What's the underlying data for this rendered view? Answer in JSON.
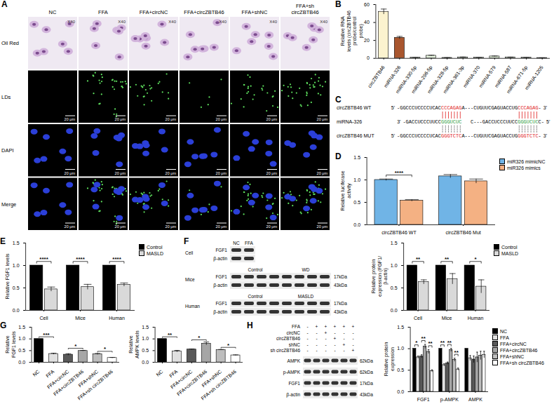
{
  "image_panel": {
    "panel": "A",
    "columns": [
      "NC",
      "FFA",
      "FFA+circNC",
      "FFA+circZBTB46",
      "FFA+shNC",
      "FFA+sh circZBTB46"
    ],
    "rows": [
      "Oil Red",
      "LDs",
      "DAPI",
      "Merge"
    ],
    "magnification": "X40",
    "scale_bar": "20 μm"
  },
  "sequence_panel": {
    "panel": "C",
    "lines": [
      {
        "label": "circZBTB46 WT",
        "ends": [
          "5'",
          "3'"
        ],
        "segments": [
          {
            "text": "-GGCCCUCCCCUCAC"
          },
          {
            "text": "CCCAGAG",
            "color": "#e02020"
          },
          {
            "text": "A---CUGUUCGAGUACCUG"
          },
          {
            "text": "CCCAGAG",
            "color": "#e02020"
          },
          {
            "text": "-"
          }
        ]
      },
      {
        "label": "miRNA-326",
        "ends": [
          "3'",
          "5'"
        ],
        "segments": [
          {
            "text": "-GACCUCCCUUCC"
          },
          {
            "text": "GGGUCUC",
            "color": "#2e9e3e"
          },
          {
            "text": "C---GACCUCCCUUCC"
          },
          {
            "text": "GGGUCUC",
            "color": "#2e9e3e"
          },
          {
            "text": "C-"
          }
        ]
      },
      {
        "label": "circZBTB46 MUT",
        "ends": [
          "5'",
          "3'"
        ],
        "segments": [
          {
            "text": "-GGCCCUCCCCUCAC"
          },
          {
            "text": "GGGTCTC",
            "color": "#e02020"
          },
          {
            "text": "A---CUGUUCGAGUACCUG"
          },
          {
            "text": "GGGTCTC",
            "color": "#e02020"
          },
          {
            "text": "-"
          }
        ]
      }
    ]
  },
  "blot_panels": [
    {
      "panel": "F",
      "groups": [
        {
          "name": "Cell",
          "headers": [
            "NC",
            "FFA"
          ],
          "lanes": [
            1,
            1
          ],
          "proteins": [
            "FGF1",
            "β-actin"
          ],
          "kda": []
        },
        {
          "name": "Mice",
          "headers": [
            "Control",
            "WD"
          ],
          "lanes": [
            4,
            4
          ],
          "proteins": [
            "FGF1",
            "β-actin"
          ],
          "kda": [
            "17kDa",
            "43kDa"
          ]
        },
        {
          "name": "Human",
          "headers": [
            "Control",
            "MASLD"
          ],
          "lanes": [
            4,
            4
          ],
          "proteins": [
            "FGF1",
            "β-actin"
          ],
          "kda": [
            "17kDa",
            "43kDa"
          ]
        }
      ]
    },
    {
      "panel": "H",
      "conditions": [
        "FFA",
        "circNC",
        "circZBTB46",
        "shNC",
        "sh circZBTB46"
      ],
      "signs": [
        [
          "-",
          "+",
          "+",
          "+",
          "+",
          "+"
        ],
        [
          "-",
          "-",
          "+",
          "-",
          "-",
          "-"
        ],
        [
          "-",
          "-",
          "-",
          "+",
          "-",
          "-"
        ],
        [
          "-",
          "-",
          "-",
          "-",
          "+",
          "-"
        ],
        [
          "-",
          "-",
          "-",
          "-",
          "-",
          "+"
        ]
      ],
      "proteins": [
        "AMPK",
        "p-AMPK",
        "FGF1",
        "β-actin"
      ],
      "kda": [
        "62kDa",
        "62kDa",
        "17kDa",
        "43kDa"
      ]
    }
  ],
  "chart_data": [
    {
      "panel": "B",
      "type": "bar",
      "y_label": "Relative RNA levels (circZBTB46 probe/control probe)",
      "categories": [
        "circZBTB46",
        "miRNA-326",
        "miRNA-330-5p",
        "miRNA-296-5p",
        "miRNA-328-5p",
        "miRNA-361-3p",
        "miRNA-370",
        "miRNA-579",
        "miRNA-587",
        "miRNA-671-5p",
        "miRNA-1205"
      ],
      "values": [
        52,
        23,
        0.8,
        3,
        0.6,
        1.2,
        0.8,
        2.2,
        1.2,
        0.8,
        0.5
      ],
      "errors": [
        3,
        1.5,
        0.2,
        0.5,
        0.2,
        0.3,
        0.2,
        0.4,
        0.2,
        0.2,
        0.1
      ],
      "colors": [
        "#fcf3cf",
        "#a9562e",
        "#e2efda",
        "#e2efda",
        "#e2efda",
        "#e2efda",
        "#e2efda",
        "#e2efda",
        "#e2efda",
        "#e2efda",
        "#e2efda"
      ],
      "ylim": [
        0,
        60
      ],
      "yticks": [
        0,
        20,
        40,
        60
      ]
    },
    {
      "panel": "D",
      "type": "bar",
      "y_label": "Relative luciferase activity",
      "categories": [
        "circZBTB46 WT",
        "circZBTB46 Mut"
      ],
      "series": [
        {
          "name": "miR326 mimicNC",
          "color": "#70b4e6",
          "values": [
            1,
            1.08
          ],
          "errors": [
            0.02,
            0.04
          ]
        },
        {
          "name": "miR326 mimics",
          "color": "#f4b183",
          "values": [
            0.54,
            0.97
          ],
          "errors": [
            0.02,
            0.05
          ]
        }
      ],
      "ylim": [
        0,
        1.5
      ],
      "yticks": [
        {
          "value": 0,
          "label": "0.0"
        },
        {
          "value": 0.5,
          "label": "0.5"
        },
        {
          "value": 1,
          "label": "1.0"
        },
        {
          "value": 1.5,
          "label": "1.5"
        }
      ],
      "legend": "right",
      "annotations": [
        {
          "text": "****",
          "category": "circZBTB46 WT",
          "from": "miR326 mimicNC",
          "to": "miR326 mimics"
        }
      ]
    },
    {
      "panel": "E",
      "type": "bar",
      "y_label": "Relative FGF1 levels",
      "categories": [
        "Cell",
        "Mice",
        "Human"
      ],
      "series": [
        {
          "name": "Control",
          "color": "#000000",
          "values": [
            1,
            1,
            1
          ],
          "errors": [
            0,
            0,
            0
          ]
        },
        {
          "name": "MASLD",
          "color": "#d9d9d9",
          "values": [
            0.47,
            0.52,
            0.57
          ],
          "errors": [
            0.05,
            0.06,
            0.04
          ]
        }
      ],
      "ylim": [
        0,
        1.5
      ],
      "yticks": [
        {
          "value": 0,
          "label": "0.0"
        },
        {
          "value": 0.5,
          "label": "0.5"
        },
        {
          "value": 1,
          "label": "1.0"
        },
        {
          "value": 1.5,
          "label": "1.5"
        }
      ],
      "legend": "right",
      "annotations": [
        {
          "text": "****",
          "category": "Cell",
          "from": "Control",
          "to": "MASLD"
        },
        {
          "text": "****",
          "category": "Mice",
          "from": "Control",
          "to": "MASLD"
        },
        {
          "text": "****",
          "category": "Human",
          "from": "Control",
          "to": "MASLD"
        }
      ]
    },
    {
      "type": "bar",
      "y_label": "Relative protein expression (FGF1/ β-actin)",
      "categories": [
        "Cell",
        "Mice",
        "Human"
      ],
      "series": [
        {
          "name": "Control",
          "color": "#000000",
          "values": [
            1,
            1,
            1
          ],
          "errors": [
            0,
            0,
            0
          ]
        },
        {
          "name": "MASLD",
          "color": "#d9d9d9",
          "values": [
            0.63,
            0.7,
            0.53
          ],
          "errors": [
            0.05,
            0.12,
            0.15
          ]
        }
      ],
      "ylim": [
        0,
        1.5
      ],
      "yticks": [
        {
          "value": 0,
          "label": "0.0"
        },
        {
          "value": 0.5,
          "label": "0.5"
        },
        {
          "value": 1,
          "label": "1.0"
        },
        {
          "value": 1.5,
          "label": "1.5"
        }
      ],
      "legend": "right",
      "annotations": [
        {
          "text": "**",
          "category": "Cell",
          "from": "Control",
          "to": "MASLD"
        },
        {
          "text": "**",
          "category": "Mice",
          "from": "Control",
          "to": "MASLD"
        },
        {
          "text": "*",
          "category": "Human",
          "from": "Control",
          "to": "MASLD"
        }
      ]
    },
    {
      "panel": "G",
      "type": "bar",
      "y_label": "Relative FGF1 levels",
      "categories": [
        "NC",
        "FFA",
        "FFA+circNC",
        "FFA+circZBTB46",
        "FFA+shNC",
        "FFA+sh circZBTB46"
      ],
      "values": [
        1,
        0.36,
        0.33,
        0.49,
        0.35,
        0.19
      ],
      "errors": [
        0,
        0.03,
        0.04,
        0.02,
        0.03,
        0.02
      ],
      "colors": [
        "#000000",
        "#e0e0e0",
        "#595959",
        "#a6a6a6",
        "#bdbdbd",
        "#ffffff"
      ],
      "ylim": [
        0,
        1.5
      ],
      "yticks": [
        {
          "value": 0,
          "label": "0.0"
        },
        {
          "value": 0.5,
          "label": "0.5"
        },
        {
          "value": 1,
          "label": "1.0"
        },
        {
          "value": 1.5,
          "label": "1.5"
        }
      ],
      "annotations": [
        {
          "text": "***",
          "from": "NC",
          "to": "FFA"
        },
        {
          "text": "*",
          "from": "FFA+circNC",
          "to": "FFA+circZBTB46"
        },
        {
          "text": "*",
          "from": "FFA+shNC",
          "to": "FFA+sh circZBTB46"
        }
      ]
    },
    {
      "type": "bar",
      "y_label": "Relative AMPK levels",
      "categories": [
        "NC",
        "FFA",
        "FFA+circNC",
        "FFA+circZBTB46",
        "FFA+shNC",
        "FFA+sh circZBTB46"
      ],
      "values": [
        1,
        0.47,
        0.55,
        0.8,
        0.53,
        0.3
      ],
      "errors": [
        0,
        0.04,
        0.02,
        0.07,
        0.02,
        0.02
      ],
      "colors": [
        "#000000",
        "#e0e0e0",
        "#595959",
        "#a6a6a6",
        "#bdbdbd",
        "#ffffff"
      ],
      "ylim": [
        0,
        1.5
      ],
      "yticks": [
        {
          "value": 0,
          "label": "0.0"
        },
        {
          "value": 0.5,
          "label": "0.5"
        },
        {
          "value": 1,
          "label": "1.0"
        },
        {
          "value": 1.5,
          "label": "1.5"
        }
      ],
      "annotations": [
        {
          "text": "**",
          "from": "NC",
          "to": "FFA"
        },
        {
          "text": "*",
          "from": "FFA+circNC",
          "to": "FFA+circZBTB46"
        },
        {
          "text": "*",
          "from": "FFA+shNC",
          "to": "FFA+sh circZBTB46"
        }
      ]
    },
    {
      "type": "bar",
      "y_label": "Relative protein expression",
      "categories": [
        "FGF1",
        "p-AMPK",
        "AMPK"
      ],
      "series": [
        {
          "name": "NC",
          "color": "#000000",
          "values": [
            1,
            1,
            1
          ],
          "errors": [
            0,
            0,
            0
          ]
        },
        {
          "name": "FFA",
          "color": "#e0e0e0",
          "values": [
            0.8,
            0.62,
            0.78
          ],
          "errors": [
            0.03,
            0.03,
            0.06
          ]
        },
        {
          "name": "FFA+circNC",
          "color": "#595959",
          "values": [
            0.82,
            0.66,
            0.75
          ],
          "errors": [
            0.04,
            0.03,
            0.08
          ]
        },
        {
          "name": "FFA+circZBTB46",
          "color": "#a6a6a6",
          "values": [
            1.05,
            0.97,
            0.8
          ],
          "errors": [
            0.05,
            0.04,
            0.12
          ]
        },
        {
          "name": "FFA+shNC",
          "color": "#bdbdbd",
          "values": [
            0.93,
            0.74,
            0.84
          ],
          "errors": [
            0.05,
            0.04,
            0.1
          ]
        },
        {
          "name": "FFA+sh circZBTB46",
          "color": "#ffffff",
          "values": [
            0.48,
            0.52,
            0.86
          ],
          "errors": [
            0.03,
            0.03,
            0.08
          ]
        }
      ],
      "ylim": [
        0,
        1.5
      ],
      "yticks": [
        {
          "value": 0,
          "label": "0.0"
        },
        {
          "value": 0.5,
          "label": "0.5"
        },
        {
          "value": 1,
          "label": "1.0"
        },
        {
          "value": 1.5,
          "label": "1.5"
        }
      ],
      "legend": "right",
      "annotations": [
        {
          "text": "*",
          "category": "FGF1",
          "from": "NC",
          "to": "FFA"
        },
        {
          "text": "**",
          "category": "FGF1",
          "from": "FFA+circNC",
          "to": "FFA+circZBTB46"
        },
        {
          "text": "**",
          "category": "FGF1",
          "from": "FFA+shNC",
          "to": "FFA+sh circZBTB46"
        },
        {
          "text": "**",
          "category": "p-AMPK",
          "from": "NC",
          "to": "FFA"
        },
        {
          "text": "**",
          "category": "p-AMPK",
          "from": "FFA+circNC",
          "to": "FFA+circZBTB46"
        },
        {
          "text": "**",
          "category": "p-AMPK",
          "from": "FFA+shNC",
          "to": "FFA+sh circZBTB46"
        }
      ]
    }
  ]
}
